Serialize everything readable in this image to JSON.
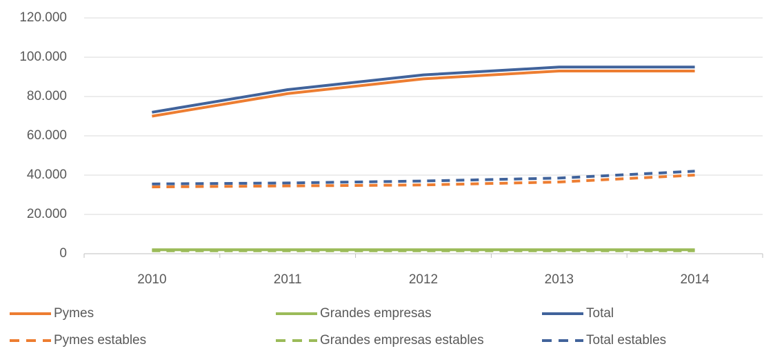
{
  "chart_data": {
    "type": "line",
    "categories": [
      "2010",
      "2011",
      "2012",
      "2013",
      "2014"
    ],
    "series": [
      {
        "name": "Pymes",
        "color": "#ed7d31",
        "dashed": false,
        "values": [
          70000,
          81500,
          89000,
          93000,
          93000
        ]
      },
      {
        "name": "Grandes empresas",
        "color": "#9bbb59",
        "dashed": false,
        "values": [
          2000,
          2000,
          2000,
          2000,
          2000
        ]
      },
      {
        "name": "Total",
        "color": "#41639b",
        "dashed": false,
        "values": [
          72000,
          83500,
          91000,
          95000,
          95000
        ]
      },
      {
        "name": "Pymes estables",
        "color": "#ed7d31",
        "dashed": true,
        "values": [
          34000,
          34500,
          35000,
          36500,
          40000
        ]
      },
      {
        "name": "Grandes empresas estables",
        "color": "#9bbb59",
        "dashed": true,
        "values": [
          1500,
          1500,
          1500,
          1500,
          1500
        ]
      },
      {
        "name": "Total estables",
        "color": "#41639b",
        "dashed": true,
        "values": [
          35500,
          36000,
          37000,
          38500,
          42000
        ]
      }
    ],
    "ylim": [
      0,
      120000
    ],
    "yticks": [
      0,
      {
        "value": 20000,
        "label": "20.000"
      },
      {
        "value": 40000,
        "label": "40.000"
      },
      {
        "value": 60000,
        "label": "60.000"
      },
      {
        "value": 80000,
        "label": "80.000"
      },
      {
        "value": 100000,
        "label": "100.000"
      },
      {
        "value": 120000,
        "label": "120.000"
      }
    ],
    "grid": true
  }
}
